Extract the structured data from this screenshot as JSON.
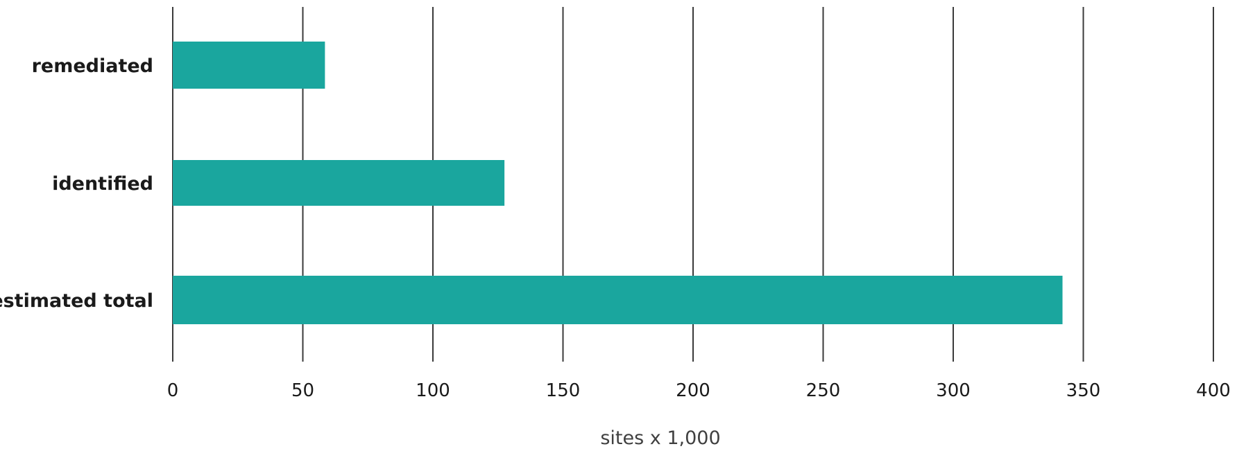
{
  "chart_data": {
    "type": "bar",
    "orientation": "horizontal",
    "categories": [
      "remediated",
      "identified",
      "estimated total"
    ],
    "values": [
      58.5,
      127.5,
      342
    ],
    "xlabel": "sites x 1,000",
    "ylabel": "",
    "xlim": [
      0,
      400
    ],
    "xticks": [
      0,
      50,
      100,
      150,
      200,
      250,
      300,
      350,
      400
    ],
    "grid": "vertical",
    "bar_color": "#1aa69e"
  }
}
